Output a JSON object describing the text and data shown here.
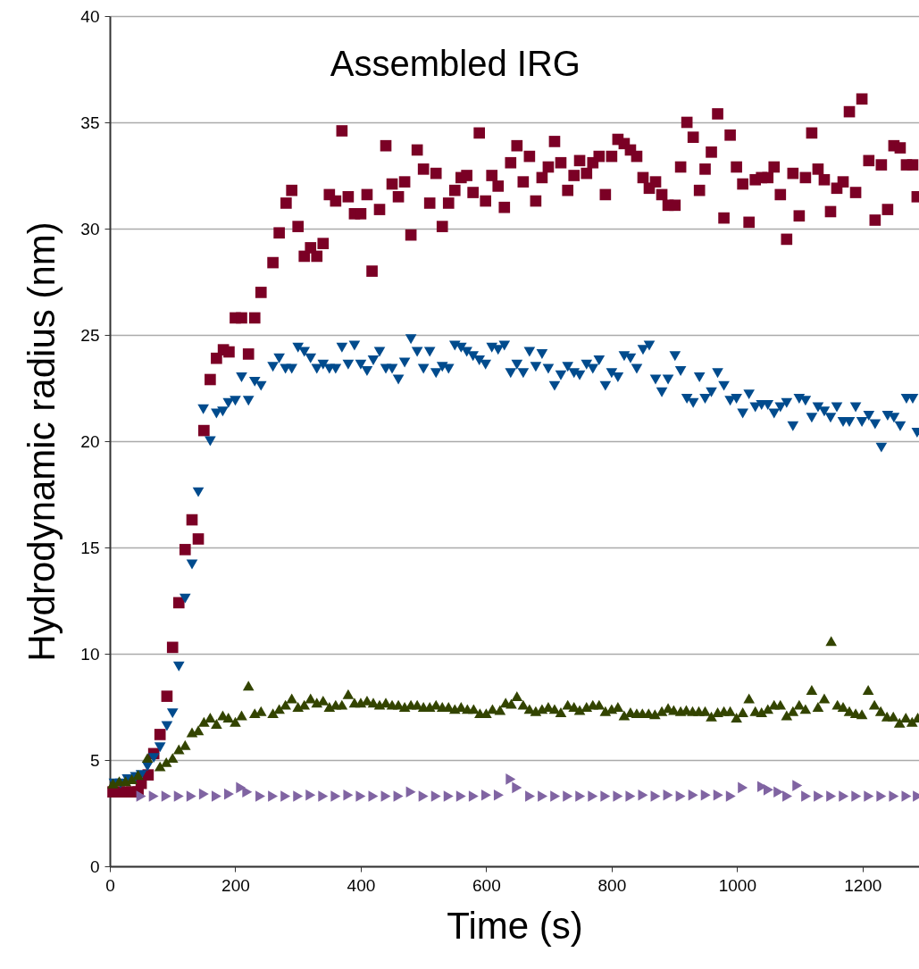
{
  "chart_data": {
    "type": "scatter",
    "title": "Assembled IRG",
    "xlabel": "Time (s)",
    "ylabel": "Hydrodynamic radius (nm)",
    "xlim": [
      0,
      1290
    ],
    "xticks": [
      0,
      200,
      400,
      600,
      800,
      1000,
      1200
    ],
    "ylim": [
      0,
      40
    ],
    "yticks": [
      0,
      5,
      10,
      15,
      20,
      25,
      30,
      35,
      40
    ],
    "grid": "y",
    "legend": false,
    "series": [
      {
        "color": "#7b0025",
        "marker": "square",
        "x": [
          5,
          15,
          25,
          35,
          45,
          50,
          61,
          70,
          80,
          91,
          100,
          110,
          120,
          131,
          141,
          150,
          160,
          170,
          181,
          190,
          200,
          210,
          221,
          231,
          241,
          260,
          270,
          281,
          290,
          300,
          310,
          320,
          330,
          340,
          350,
          360,
          370,
          380,
          390,
          400,
          410,
          418,
          430,
          440,
          450,
          460,
          470,
          480,
          490,
          500,
          510,
          520,
          530,
          540,
          550,
          560,
          569,
          579,
          589,
          599,
          609,
          619,
          629,
          639,
          649,
          659,
          669,
          679,
          689,
          699,
          709,
          719,
          730,
          740,
          749,
          760,
          770,
          780,
          790,
          800,
          810,
          820,
          830,
          840,
          850,
          860,
          870,
          880,
          890,
          901,
          910,
          920,
          930,
          940,
          949,
          959,
          969,
          979,
          989,
          999,
          1009,
          1019,
          1029,
          1039,
          1049,
          1059,
          1069,
          1079,
          1089,
          1099,
          1109,
          1119,
          1129,
          1139,
          1149,
          1159,
          1169,
          1179,
          1189,
          1199,
          1210,
          1220,
          1230,
          1240,
          1250,
          1260,
          1270,
          1280,
          1287
        ],
        "values": [
          3.5,
          3.5,
          3.5,
          3.5,
          3.5,
          3.9,
          4.3,
          5.3,
          6.2,
          8.0,
          10.3,
          12.4,
          14.9,
          16.3,
          15.4,
          20.5,
          22.9,
          23.9,
          24.3,
          24.2,
          25.8,
          25.8,
          24.1,
          25.8,
          27.0,
          28.4,
          29.8,
          31.2,
          31.8,
          30.1,
          28.7,
          29.1,
          28.7,
          29.3,
          31.6,
          31.3,
          34.6,
          31.5,
          30.7,
          30.7,
          31.6,
          28.0,
          30.9,
          33.9,
          32.1,
          31.5,
          32.2,
          29.7,
          33.7,
          32.8,
          31.2,
          32.6,
          30.1,
          31.2,
          31.8,
          32.4,
          32.5,
          31.7,
          34.5,
          31.3,
          32.5,
          32.0,
          31.0,
          33.1,
          33.9,
          32.2,
          33.4,
          31.3,
          32.4,
          32.9,
          34.1,
          33.1,
          31.8,
          32.5,
          33.2,
          32.6,
          33.1,
          33.4,
          31.6,
          33.4,
          34.2,
          34.0,
          33.7,
          33.4,
          32.4,
          31.9,
          32.2,
          31.6,
          31.1,
          31.1,
          32.9,
          35.0,
          34.3,
          31.8,
          32.8,
          33.6,
          35.4,
          30.5,
          34.4,
          32.9,
          32.1,
          30.3,
          32.3,
          32.4,
          32.4,
          32.9,
          31.6,
          29.5,
          32.6,
          30.6,
          32.4,
          34.5,
          32.8,
          32.3,
          30.8,
          31.9,
          32.2,
          35.5,
          31.7,
          36.1,
          33.2,
          30.4,
          33.0,
          30.9,
          33.9,
          33.8,
          33.0,
          33.0,
          31.5
        ]
      },
      {
        "color": "#004b8d",
        "marker": "triangle-down",
        "x": [
          7,
          17,
          28,
          41,
          50,
          60,
          70,
          80,
          91,
          100,
          110,
          120,
          131,
          141,
          149,
          160,
          170,
          180,
          189,
          200,
          210,
          221,
          231,
          241,
          260,
          270,
          280,
          290,
          300,
          310,
          320,
          330,
          340,
          350,
          360,
          370,
          380,
          390,
          400,
          410,
          420,
          430,
          440,
          450,
          460,
          470,
          480,
          490,
          500,
          510,
          520,
          530,
          540,
          550,
          560,
          569,
          579,
          589,
          599,
          609,
          619,
          629,
          639,
          649,
          659,
          669,
          679,
          689,
          699,
          709,
          719,
          730,
          740,
          749,
          760,
          770,
          780,
          790,
          800,
          810,
          820,
          830,
          840,
          850,
          860,
          870,
          880,
          890,
          901,
          910,
          920,
          930,
          940,
          949,
          959,
          969,
          979,
          989,
          999,
          1009,
          1019,
          1029,
          1039,
          1049,
          1059,
          1069,
          1079,
          1089,
          1099,
          1109,
          1119,
          1129,
          1139,
          1149,
          1159,
          1169,
          1179,
          1189,
          1199,
          1210,
          1220,
          1230,
          1240,
          1250,
          1260,
          1270,
          1280,
          1287
        ],
        "values": [
          3.9,
          3.9,
          4.1,
          4.2,
          4.3,
          4.7,
          5.1,
          5.6,
          6.6,
          7.2,
          9.4,
          12.6,
          14.2,
          17.6,
          21.5,
          20.0,
          21.3,
          21.4,
          21.8,
          21.9,
          23.0,
          21.9,
          22.8,
          22.6,
          23.5,
          23.9,
          23.4,
          23.4,
          24.4,
          24.2,
          23.9,
          23.4,
          23.6,
          23.4,
          23.4,
          24.4,
          23.6,
          24.5,
          23.6,
          23.3,
          23.8,
          24.2,
          23.4,
          23.4,
          22.9,
          23.7,
          24.8,
          24.2,
          23.4,
          24.2,
          23.2,
          23.5,
          23.4,
          24.5,
          24.4,
          24.2,
          24.0,
          23.8,
          23.6,
          24.4,
          24.3,
          24.5,
          23.2,
          23.6,
          23.2,
          24.2,
          23.5,
          24.1,
          23.4,
          22.6,
          23.1,
          23.5,
          23.2,
          23.1,
          23.6,
          23.4,
          23.8,
          22.6,
          23.2,
          23.0,
          24.0,
          23.9,
          23.4,
          24.3,
          24.5,
          22.9,
          22.3,
          22.9,
          24.0,
          23.3,
          22.0,
          21.8,
          23.0,
          22.0,
          22.3,
          23.2,
          22.6,
          21.9,
          22.0,
          21.3,
          22.2,
          21.6,
          21.7,
          21.7,
          21.3,
          21.6,
          21.8,
          20.7,
          22.0,
          21.9,
          21.1,
          21.6,
          21.4,
          21.1,
          21.6,
          20.9,
          20.9,
          21.6,
          20.9,
          21.2,
          20.8,
          19.7,
          21.2,
          21.1,
          20.7,
          22.0,
          22.0,
          20.4
        ]
      },
      {
        "color": "#334400",
        "marker": "triangle",
        "x": [
          5,
          15,
          25,
          35,
          45,
          60,
          80,
          90,
          100,
          110,
          120,
          131,
          141,
          150,
          160,
          170,
          180,
          189,
          200,
          210,
          221,
          231,
          241,
          260,
          270,
          280,
          290,
          300,
          310,
          320,
          330,
          340,
          350,
          360,
          370,
          380,
          390,
          400,
          410,
          420,
          430,
          440,
          450,
          460,
          470,
          480,
          490,
          500,
          510,
          520,
          530,
          540,
          550,
          560,
          570,
          580,
          590,
          600,
          610,
          622,
          631,
          640,
          649,
          659,
          669,
          679,
          689,
          699,
          709,
          719,
          730,
          740,
          749,
          760,
          770,
          780,
          790,
          800,
          810,
          820,
          830,
          840,
          849,
          859,
          869,
          880,
          890,
          899,
          910,
          919,
          929,
          939,
          949,
          959,
          969,
          979,
          989,
          999,
          1009,
          1019,
          1029,
          1039,
          1049,
          1059,
          1069,
          1079,
          1089,
          1099,
          1109,
          1119,
          1129,
          1139,
          1150,
          1160,
          1169,
          1179,
          1189,
          1199,
          1209,
          1219,
          1229,
          1239,
          1249,
          1259,
          1269,
          1279,
          1288
        ],
        "values": [
          3.9,
          4.0,
          4.0,
          4.1,
          4.3,
          5.1,
          4.7,
          4.9,
          5.1,
          5.5,
          5.7,
          6.3,
          6.4,
          6.8,
          7.0,
          6.7,
          7.1,
          7.0,
          6.8,
          7.1,
          8.5,
          7.2,
          7.3,
          7.2,
          7.4,
          7.6,
          7.9,
          7.5,
          7.6,
          7.9,
          7.7,
          7.8,
          7.5,
          7.6,
          7.6,
          8.1,
          7.7,
          7.7,
          7.8,
          7.7,
          7.6,
          7.7,
          7.6,
          7.6,
          7.5,
          7.6,
          7.6,
          7.5,
          7.5,
          7.6,
          7.5,
          7.5,
          7.4,
          7.5,
          7.4,
          7.4,
          7.2,
          7.2,
          7.4,
          7.35,
          7.7,
          7.65,
          8.0,
          7.6,
          7.4,
          7.3,
          7.4,
          7.5,
          7.4,
          7.25,
          7.6,
          7.5,
          7.35,
          7.5,
          7.6,
          7.6,
          7.3,
          7.4,
          7.5,
          7.1,
          7.25,
          7.2,
          7.2,
          7.2,
          7.15,
          7.3,
          7.45,
          7.35,
          7.3,
          7.35,
          7.3,
          7.3,
          7.3,
          7.05,
          7.25,
          7.3,
          7.3,
          7.0,
          7.25,
          7.9,
          7.3,
          7.25,
          7.4,
          7.6,
          7.6,
          7.1,
          7.3,
          7.6,
          7.4,
          8.3,
          7.5,
          7.9,
          10.6,
          7.6,
          7.5,
          7.3,
          7.2,
          7.15,
          8.3,
          7.6,
          7.3,
          7.05,
          7.05,
          6.75,
          7.0,
          6.8,
          7.0
        ]
      },
      {
        "color": "#8064a2",
        "marker": "triangle-right",
        "x": [
          50,
          70,
          90,
          110,
          130,
          150,
          170,
          190,
          209,
          219,
          240,
          260,
          280,
          300,
          320,
          340,
          360,
          380,
          400,
          420,
          440,
          460,
          480,
          500,
          520,
          540,
          560,
          580,
          600,
          620,
          639,
          649,
          670,
          690,
          710,
          730,
          750,
          770,
          790,
          810,
          830,
          850,
          870,
          890,
          910,
          930,
          950,
          970,
          990,
          1009,
          1040,
          1050,
          1066,
          1080,
          1096,
          1110,
          1130,
          1150,
          1170,
          1190,
          1210,
          1230,
          1250,
          1270,
          1288
        ],
        "values": [
          3.3,
          3.3,
          3.3,
          3.3,
          3.3,
          3.4,
          3.3,
          3.4,
          3.7,
          3.5,
          3.3,
          3.3,
          3.3,
          3.3,
          3.35,
          3.3,
          3.3,
          3.35,
          3.3,
          3.3,
          3.3,
          3.3,
          3.5,
          3.3,
          3.3,
          3.3,
          3.3,
          3.3,
          3.35,
          3.35,
          4.1,
          3.7,
          3.3,
          3.3,
          3.3,
          3.3,
          3.3,
          3.3,
          3.3,
          3.3,
          3.3,
          3.35,
          3.3,
          3.35,
          3.3,
          3.35,
          3.35,
          3.35,
          3.3,
          3.7,
          3.75,
          3.6,
          3.5,
          3.3,
          3.8,
          3.3,
          3.3,
          3.3,
          3.3,
          3.3,
          3.3,
          3.3,
          3.3,
          3.3,
          3.3
        ]
      }
    ]
  }
}
